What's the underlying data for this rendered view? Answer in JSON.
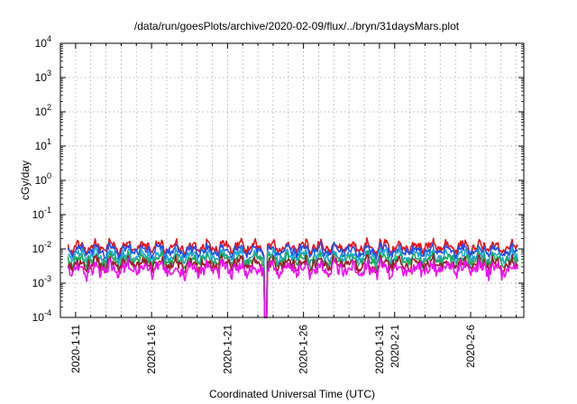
{
  "chart_data": {
    "type": "line",
    "title": "/data/run/goesPlots/archive/2020-02-09/flux/../bryn/31daysMars.plot",
    "xlabel": "Coordinated Universal Time (UTC)",
    "ylabel": "cGy/day",
    "yscale": "log",
    "ylim": [
      0.0001,
      10000
    ],
    "xlim_days": [
      -1,
      29.5
    ],
    "x_ticks": [
      {
        "label": "2020-1-11",
        "day": 0
      },
      {
        "label": "2020-1-16",
        "day": 5
      },
      {
        "label": "2020-1-21",
        "day": 10
      },
      {
        "label": "2020-1-26",
        "day": 15
      },
      {
        "label": "2020-1-31",
        "day": 20
      },
      {
        "label": "2020-2-1",
        "day": 21
      },
      {
        "label": "2020-2-6",
        "day": 26
      }
    ],
    "y_ticks": [
      {
        "base": "10",
        "exp": "4",
        "value": 10000
      },
      {
        "base": "10",
        "exp": "3",
        "value": 1000
      },
      {
        "base": "10",
        "exp": "2",
        "value": 100
      },
      {
        "base": "10",
        "exp": "1",
        "value": 10
      },
      {
        "base": "10",
        "exp": "0",
        "value": 1
      },
      {
        "base": "10",
        "exp": "-1",
        "value": 0.1
      },
      {
        "base": "10",
        "exp": "-2",
        "value": 0.01
      },
      {
        "base": "10",
        "exp": "-3",
        "value": 0.001
      },
      {
        "base": "10",
        "exp": "-4",
        "value": 0.0001
      }
    ],
    "grid": true,
    "dropout_days": [
      12.4,
      12.6
    ],
    "series": [
      {
        "name": "red",
        "color": "#e8131b",
        "base": 0.0115,
        "noise": 0.09,
        "seed": 11
      },
      {
        "name": "blue",
        "color": "#1f4fe8",
        "base": 0.009,
        "noise": 0.09,
        "seed": 23
      },
      {
        "name": "cyan",
        "color": "#1ea7cf",
        "base": 0.0062,
        "noise": 0.1,
        "seed": 37
      },
      {
        "name": "green",
        "color": "#1faa5a",
        "base": 0.0047,
        "noise": 0.11,
        "seed": 41
      },
      {
        "name": "dark-red",
        "color": "#9b1c2a",
        "base": 0.0036,
        "noise": 0.12,
        "seed": 53
      },
      {
        "name": "magenta",
        "color": "#ee10ee",
        "base": 0.0026,
        "noise": 0.16,
        "seed": 67
      }
    ]
  }
}
